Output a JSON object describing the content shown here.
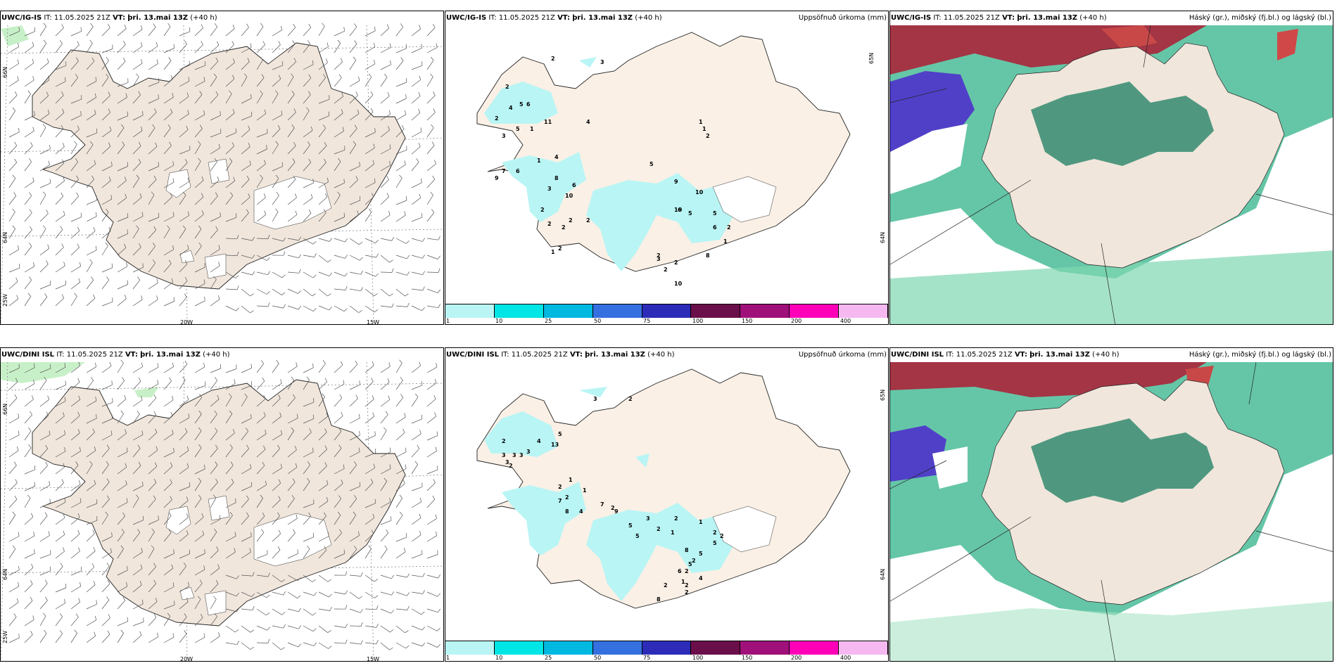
{
  "rows": [
    {
      "model": "UWC/IG-IS",
      "it_label": "IT:",
      "it_value": "11.05.2025 21Z",
      "vt_label": "VT:",
      "vt_value": "þri. 13.mai 13Z",
      "lead": "(+40 h)",
      "wind_lon_labels": [
        "20W",
        "15W"
      ],
      "wind_lat_labels": [
        "66N",
        "64N",
        "25W"
      ],
      "precip_lat_labels": [
        "65N",
        "64N"
      ],
      "precip_values": [
        "3",
        "2",
        "2",
        "4",
        "5",
        "2",
        "11",
        "6",
        "1",
        "3",
        "5",
        "4",
        "4",
        "1",
        "6",
        "8",
        "3",
        "9",
        "7",
        "10",
        "6",
        "2",
        "2",
        "2",
        "2",
        "2",
        "1",
        "2",
        "1",
        "1",
        "2",
        "5",
        "9",
        "10",
        "10",
        "5",
        "5",
        "6",
        "6",
        "2",
        "1",
        "2",
        "3",
        "2",
        "8",
        "2",
        "10"
      ]
    },
    {
      "model": "UWC/DINI ISL",
      "it_label": "IT:",
      "it_value": "11.05.2025 21Z",
      "vt_label": "VT:",
      "vt_value": "þri. 13.mai 13Z",
      "lead": "(+40 h)",
      "wind_lon_labels": [
        "20W",
        "15W"
      ],
      "wind_lat_labels": [
        "66N",
        "64N",
        "25W"
      ],
      "precip_lat_labels": [
        "65N",
        "64N"
      ],
      "precip_values": [
        "3",
        "2",
        "2",
        "3",
        "2",
        "3",
        "3",
        "3",
        "13",
        "3",
        "4",
        "5",
        "1",
        "1",
        "2",
        "2",
        "7",
        "4",
        "8",
        "7",
        "2",
        "9",
        "5",
        "5",
        "2",
        "2",
        "1",
        "1",
        "2",
        "8",
        "5",
        "5",
        "2",
        "6",
        "4",
        "2",
        "2",
        "8",
        "2",
        "1",
        "2",
        "2",
        "5",
        "3"
      ]
    }
  ],
  "precip_title": "Uppsöfnuð úrkoma (mm)",
  "cloud_title": "Háský (gr.), miðský (fj.bl.) og lágský (bl.)",
  "colorbar": {
    "ticks": [
      "1",
      "10",
      "25",
      "50",
      "75",
      "100",
      "150",
      "200",
      "400"
    ],
    "colors": [
      "#b9f5f5",
      "#00e5e5",
      "#00b8e0",
      "#3470e0",
      "#2c2cb8",
      "#6b0f4a",
      "#a0107a",
      "#ff00b8",
      "#f5b8f0"
    ]
  },
  "colors": {
    "land": "#f0e6dc",
    "precip_land": "#faf0e6",
    "rain": "#b9f5f5",
    "cloud_green": "#2fa883",
    "cloud_dark_green": "#3d8f74",
    "high_cloud_red": "#b03030",
    "mid_cloud_blue": "#5a4ad0"
  }
}
